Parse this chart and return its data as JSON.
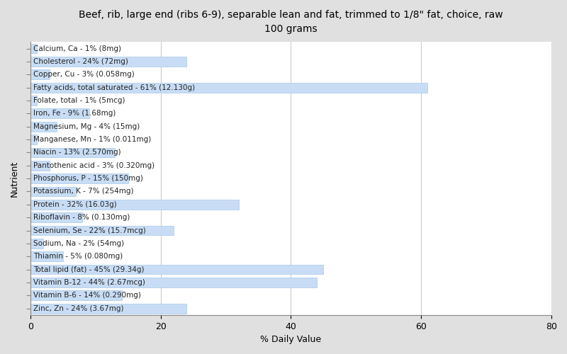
{
  "title": "Beef, rib, large end (ribs 6-9), separable lean and fat, trimmed to 1/8\" fat, choice, raw\n100 grams",
  "xlabel": "% Daily Value",
  "ylabel": "Nutrient",
  "xlim": [
    0,
    80
  ],
  "fig_background_color": "#e0e0e0",
  "plot_background_color": "#ffffff",
  "bar_color": "#c8ddf5",
  "bar_edge_color": "#a8c8e8",
  "nutrients": [
    {
      "label": "Calcium, Ca - 1% (8mg)",
      "value": 1
    },
    {
      "label": "Cholesterol - 24% (72mg)",
      "value": 24
    },
    {
      "label": "Copper, Cu - 3% (0.058mg)",
      "value": 3
    },
    {
      "label": "Fatty acids, total saturated - 61% (12.130g)",
      "value": 61
    },
    {
      "label": "Folate, total - 1% (5mcg)",
      "value": 1
    },
    {
      "label": "Iron, Fe - 9% (1.68mg)",
      "value": 9
    },
    {
      "label": "Magnesium, Mg - 4% (15mg)",
      "value": 4
    },
    {
      "label": "Manganese, Mn - 1% (0.011mg)",
      "value": 1
    },
    {
      "label": "Niacin - 13% (2.570mg)",
      "value": 13
    },
    {
      "label": "Pantothenic acid - 3% (0.320mg)",
      "value": 3
    },
    {
      "label": "Phosphorus, P - 15% (150mg)",
      "value": 15
    },
    {
      "label": "Potassium, K - 7% (254mg)",
      "value": 7
    },
    {
      "label": "Protein - 32% (16.03g)",
      "value": 32
    },
    {
      "label": "Riboflavin - 8% (0.130mg)",
      "value": 8
    },
    {
      "label": "Selenium, Se - 22% (15.7mcg)",
      "value": 22
    },
    {
      "label": "Sodium, Na - 2% (54mg)",
      "value": 2
    },
    {
      "label": "Thiamin - 5% (0.080mg)",
      "value": 5
    },
    {
      "label": "Total lipid (fat) - 45% (29.34g)",
      "value": 45
    },
    {
      "label": "Vitamin B-12 - 44% (2.67mcg)",
      "value": 44
    },
    {
      "label": "Vitamin B-6 - 14% (0.290mg)",
      "value": 14
    },
    {
      "label": "Zinc, Zn - 24% (3.67mg)",
      "value": 24
    }
  ],
  "title_fontsize": 10,
  "label_fontsize": 7.5,
  "tick_fontsize": 9,
  "axis_label_fontsize": 9
}
